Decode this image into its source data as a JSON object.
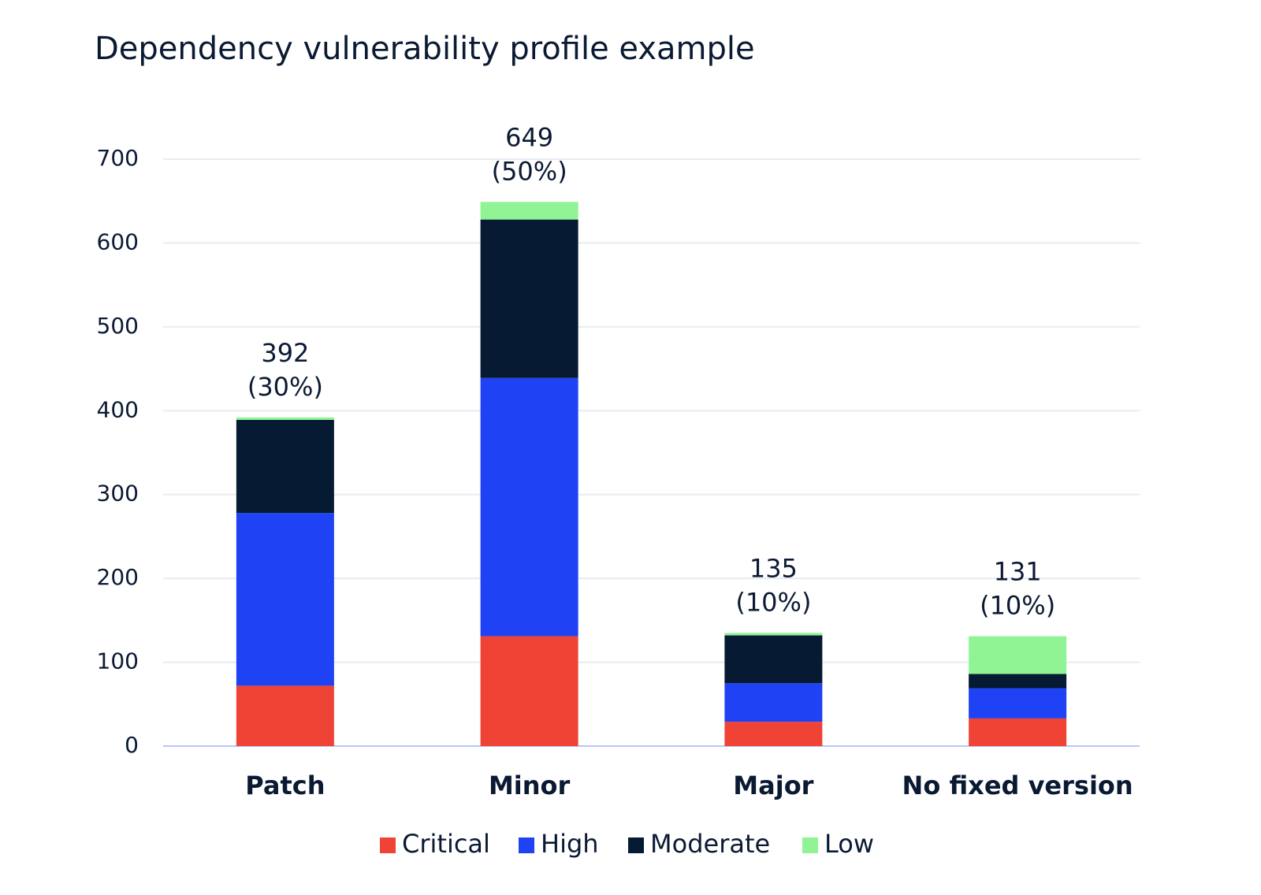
{
  "chart_data": {
    "type": "stacked_bar",
    "title": "Dependency vulnerability profile example",
    "categories": [
      "Patch",
      "Minor",
      "Major",
      "No fixed version"
    ],
    "series": [
      {
        "name": "Critical",
        "color": "#ef4335",
        "values": [
          72,
          131,
          29,
          33
        ]
      },
      {
        "name": "High",
        "color": "#1f42f4",
        "values": [
          206,
          308,
          46,
          36
        ]
      },
      {
        "name": "Moderate",
        "color": "#061a33",
        "values": [
          111,
          189,
          57,
          17
        ]
      },
      {
        "name": "Low",
        "color": "#90f495",
        "values": [
          3,
          21,
          3,
          45
        ]
      }
    ],
    "totals": [
      392,
      649,
      135,
      131
    ],
    "total_share_labels": [
      "(30%)",
      "(50%)",
      "(10%)",
      "(10%)"
    ],
    "ylim": [
      0,
      700
    ],
    "yticks": [
      0,
      100,
      200,
      300,
      400,
      500,
      600,
      700
    ],
    "grid": true
  }
}
